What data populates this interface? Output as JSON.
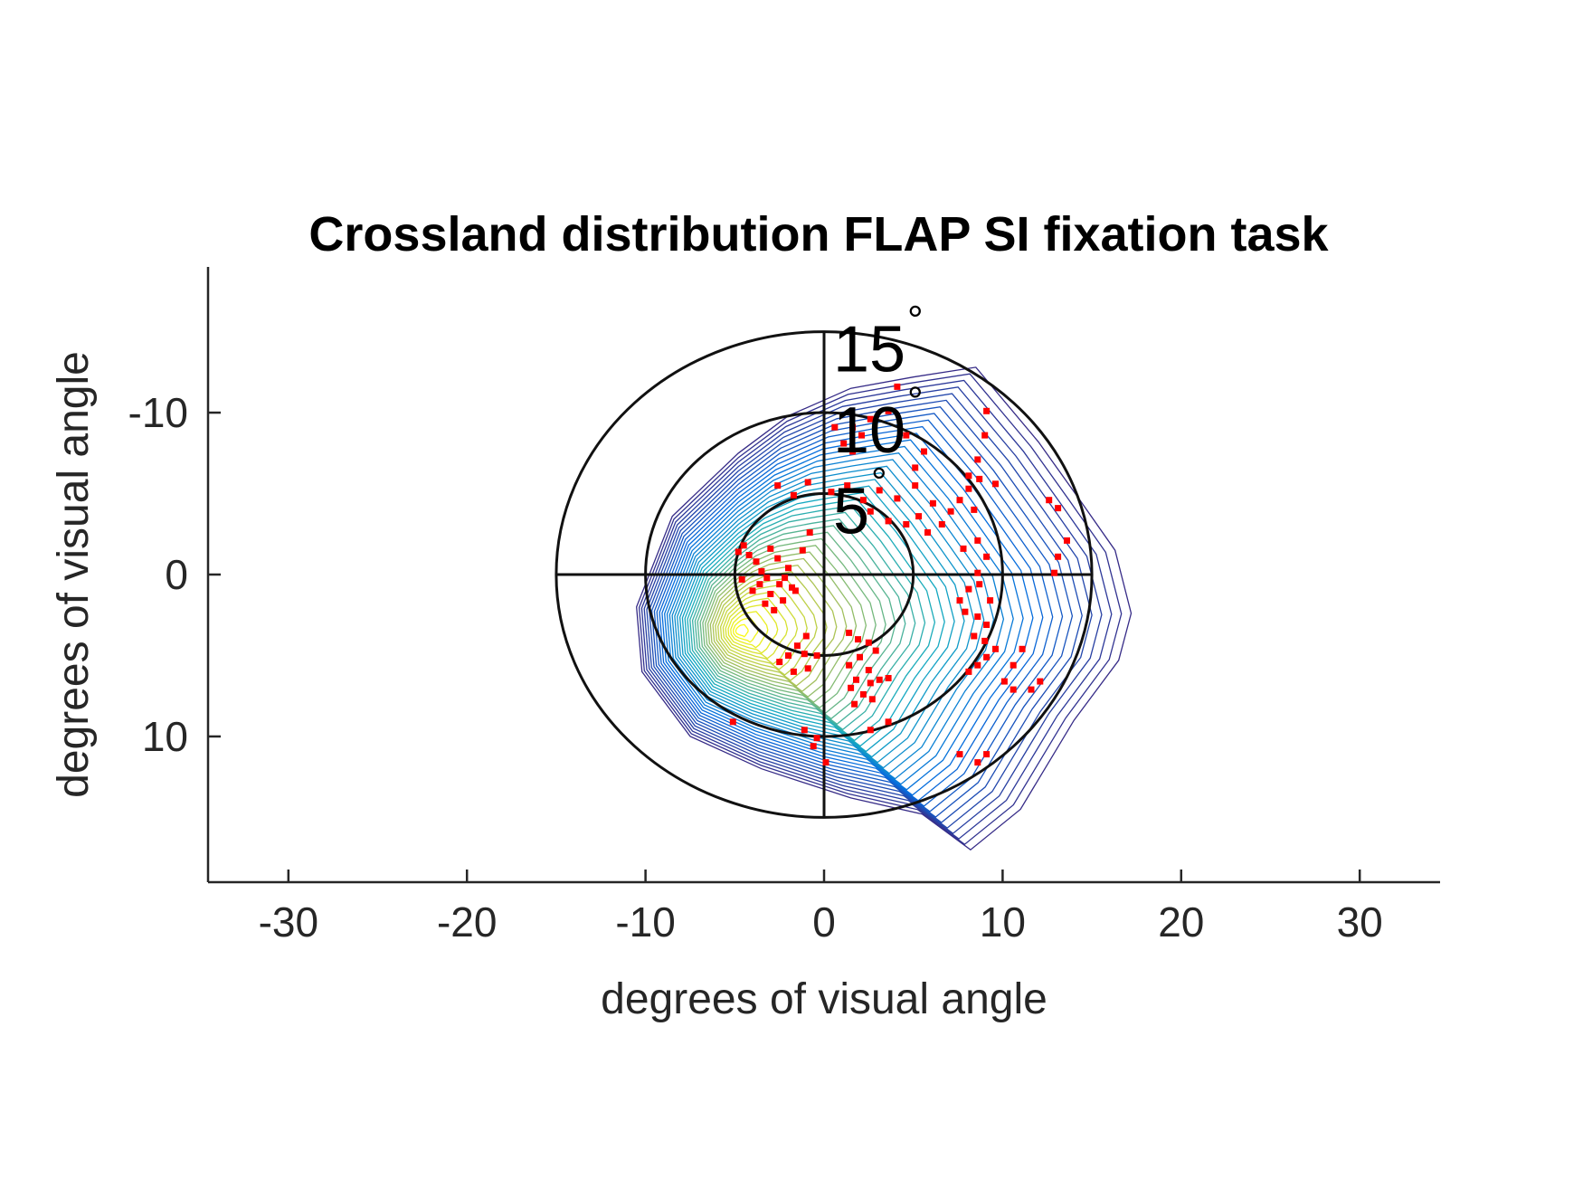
{
  "chart_data": {
    "type": "scatter",
    "title": "Crossland distribution FLAP SI fixation task",
    "xlabel": "degrees of visual angle",
    "ylabel": "degrees of visual angle",
    "xlim": [
      -34.5,
      34.5
    ],
    "ylim": [
      19,
      -19
    ],
    "y_reversed": true,
    "xticks": [
      -30,
      -20,
      -10,
      0,
      10,
      20,
      30
    ],
    "xtick_labels": [
      "-30",
      "-20",
      "-10",
      "0",
      "10",
      "20",
      "30"
    ],
    "yticks": [
      -10,
      0,
      10
    ],
    "ytick_labels": [
      "-10",
      "0",
      "10"
    ],
    "grid": false,
    "reference_rings": [
      {
        "radius": 5,
        "label": "5",
        "degree_symbol": "°"
      },
      {
        "radius": 10,
        "label": "10",
        "degree_symbol": "°"
      },
      {
        "radius": 15,
        "label": "15",
        "degree_symbol": "°"
      }
    ],
    "crosshair_extent": 15,
    "density_contours": {
      "colormap": "parula-like",
      "peak": [
        -4.8,
        3.5
      ],
      "levels": 40
    },
    "fixation_points_color": "#ff0000",
    "fixation_points": [
      [
        -4.5,
        -1.8
      ],
      [
        -4.2,
        -1.2
      ],
      [
        -3.8,
        -0.8
      ],
      [
        -3.5,
        -0.2
      ],
      [
        -3.2,
        0.2
      ],
      [
        -3.6,
        0.6
      ],
      [
        -4.0,
        1.0
      ],
      [
        -3.0,
        1.2
      ],
      [
        -2.5,
        0.6
      ],
      [
        -2.2,
        0.2
      ],
      [
        -2.0,
        -0.4
      ],
      [
        -1.8,
        0.8
      ],
      [
        -2.6,
        -1.0
      ],
      [
        -3.0,
        -1.6
      ],
      [
        -4.8,
        -1.4
      ],
      [
        -4.6,
        0.3
      ],
      [
        -3.3,
        1.8
      ],
      [
        -2.8,
        2.2
      ],
      [
        -2.3,
        1.6
      ],
      [
        -1.6,
        1.0
      ],
      [
        -1.2,
        -1.5
      ],
      [
        -0.8,
        -2.6
      ],
      [
        -1.0,
        3.8
      ],
      [
        -1.5,
        4.4
      ],
      [
        -2.0,
        5.0
      ],
      [
        -2.5,
        5.4
      ],
      [
        -1.7,
        6.0
      ],
      [
        -0.9,
        5.8
      ],
      [
        -0.4,
        5.0
      ],
      [
        -1.1,
        4.9
      ],
      [
        1.4,
        3.6
      ],
      [
        1.9,
        4.0
      ],
      [
        2.5,
        4.2
      ],
      [
        2.0,
        5.1
      ],
      [
        2.5,
        5.9
      ],
      [
        1.8,
        6.5
      ],
      [
        1.5,
        7.0
      ],
      [
        2.2,
        7.4
      ],
      [
        2.7,
        7.7
      ],
      [
        1.7,
        8.0
      ],
      [
        3.6,
        6.4
      ],
      [
        2.6,
        6.7
      ],
      [
        3.1,
        6.5
      ],
      [
        1.4,
        5.6
      ],
      [
        2.9,
        4.7
      ],
      [
        -2.6,
        -5.5
      ],
      [
        -1.7,
        -4.9
      ],
      [
        -0.9,
        -5.7
      ],
      [
        0.4,
        -5.1
      ],
      [
        1.3,
        -5.5
      ],
      [
        2.2,
        -4.6
      ],
      [
        3.1,
        -5.2
      ],
      [
        4.1,
        -4.7
      ],
      [
        5.1,
        -5.5
      ],
      [
        6.1,
        -4.4
      ],
      [
        4.6,
        -3.1
      ],
      [
        5.3,
        -3.6
      ],
      [
        6.6,
        -3.1
      ],
      [
        7.1,
        -3.9
      ],
      [
        7.6,
        -4.6
      ],
      [
        8.1,
        -5.3
      ],
      [
        8.7,
        -5.9
      ],
      [
        9.6,
        -5.6
      ],
      [
        8.4,
        -4.0
      ],
      [
        3.6,
        -3.3
      ],
      [
        2.6,
        -3.9
      ],
      [
        5.8,
        -2.6
      ],
      [
        8.6,
        -2.1
      ],
      [
        9.1,
        -1.1
      ],
      [
        8.6,
        -0.1
      ],
      [
        8.1,
        0.9
      ],
      [
        7.6,
        1.6
      ],
      [
        7.9,
        2.3
      ],
      [
        8.6,
        2.6
      ],
      [
        9.1,
        3.1
      ],
      [
        8.4,
        3.8
      ],
      [
        9.0,
        4.1
      ],
      [
        9.6,
        4.6
      ],
      [
        9.1,
        5.1
      ],
      [
        8.6,
        5.6
      ],
      [
        8.1,
        6.0
      ],
      [
        8.7,
        0.6
      ],
      [
        9.3,
        1.6
      ],
      [
        7.8,
        -1.6
      ],
      [
        12.6,
        -4.6
      ],
      [
        13.1,
        -4.1
      ],
      [
        13.6,
        -2.1
      ],
      [
        13.1,
        -1.1
      ],
      [
        12.9,
        -0.1
      ],
      [
        11.1,
        4.6
      ],
      [
        10.6,
        5.6
      ],
      [
        10.1,
        6.6
      ],
      [
        10.6,
        7.1
      ],
      [
        7.6,
        11.1
      ],
      [
        8.6,
        11.6
      ],
      [
        9.1,
        11.1
      ],
      [
        11.6,
        7.1
      ],
      [
        12.1,
        6.6
      ],
      [
        9.1,
        -10.1
      ],
      [
        9.0,
        -8.6
      ],
      [
        8.6,
        -7.1
      ],
      [
        8.1,
        -6.1
      ],
      [
        5.6,
        -7.6
      ],
      [
        5.1,
        -6.6
      ],
      [
        4.6,
        -8.6
      ],
      [
        4.1,
        -11.6
      ],
      [
        3.6,
        -10.1
      ],
      [
        2.6,
        -9.6
      ],
      [
        1.6,
        -9.1
      ],
      [
        1.1,
        -8.1
      ],
      [
        0.6,
        -9.1
      ],
      [
        1.6,
        -7.6
      ],
      [
        2.1,
        -8.6
      ],
      [
        -5.1,
        9.1
      ],
      [
        -1.1,
        9.6
      ],
      [
        -0.6,
        10.6
      ],
      [
        0.1,
        11.6
      ],
      [
        -0.4,
        10.1
      ],
      [
        2.6,
        9.6
      ],
      [
        3.6,
        9.1
      ]
    ]
  }
}
